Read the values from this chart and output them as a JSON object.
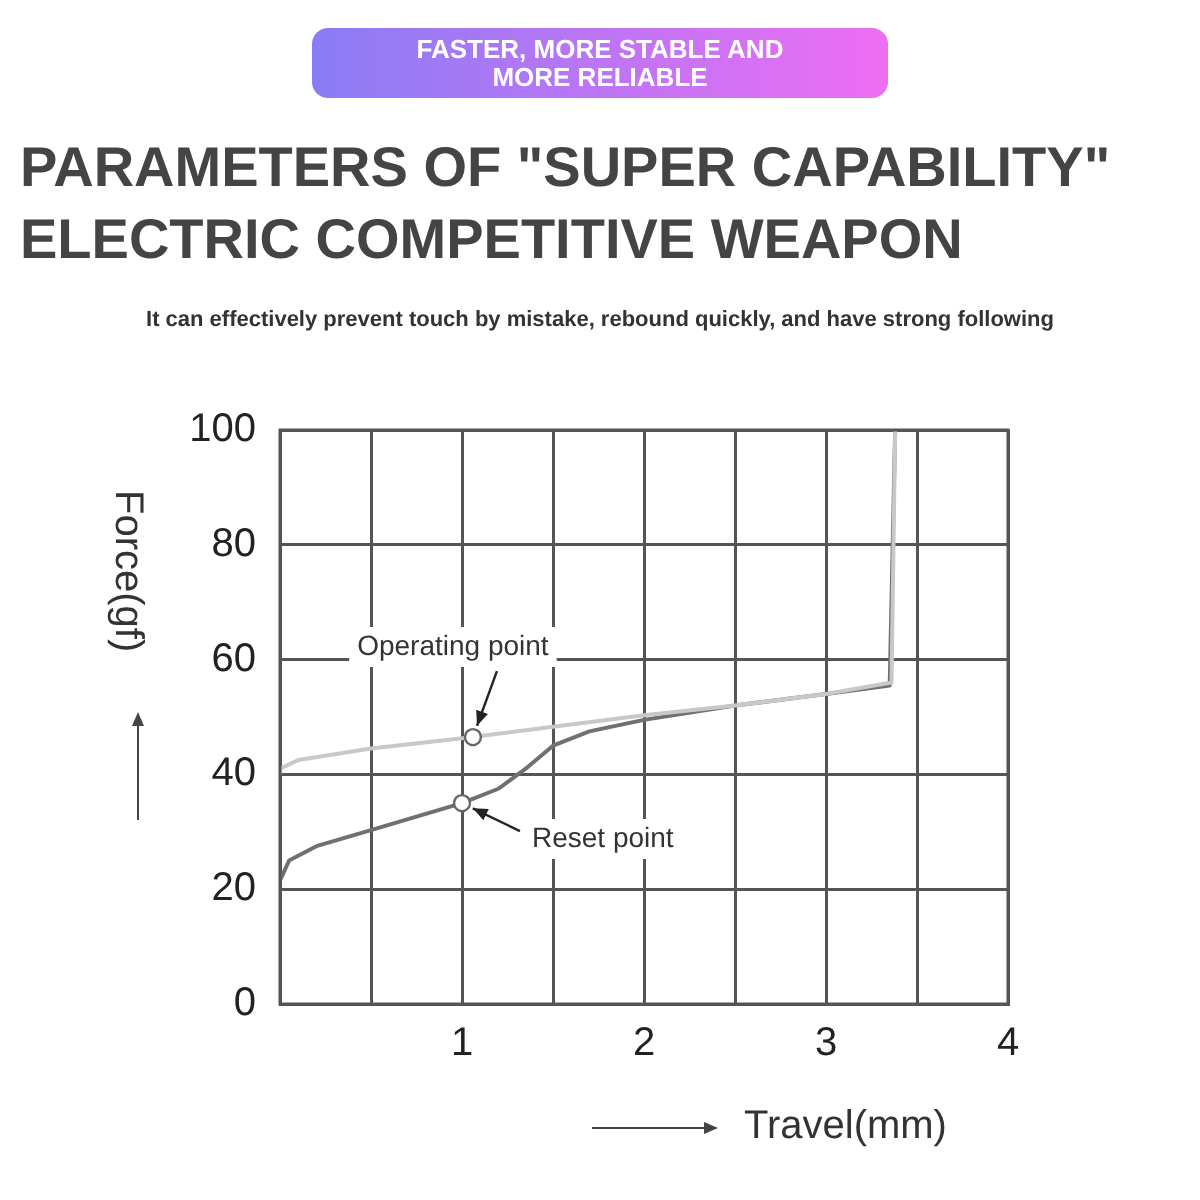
{
  "chart_data": {
    "type": "line",
    "title": "PARAMETERS OF \"SUPER CAPABILITY\" ELECTRIC COMPETITIVE WEAPON",
    "subtitle": "It can effectively prevent touch by mistake, rebound quickly, and have strong following",
    "xlabel": "Travel(mm)",
    "ylabel": "Force(gf)",
    "annotations": [
      "FASTER, MORE STABLE AND MORE RELIABLE",
      {
        "text": "Operating point",
        "x": 1.06,
        "y": 46.5
      },
      {
        "text": "Reset point",
        "x": 1,
        "y": 35
      }
    ],
    "series": [
      {
        "color": "#c8c8c8",
        "x": [
          0,
          0,
          0.1,
          0.5,
          1,
          1.5,
          2,
          2.5,
          3,
          3.36,
          3.38
        ],
        "values": [
          40,
          41,
          42.5,
          44.5,
          46.3,
          48.3,
          50.3,
          52,
          54,
          56,
          100
        ]
      },
      {
        "color": "#707070",
        "x": [
          0,
          0.05,
          0.2,
          0.5,
          1,
          1.2,
          1.35,
          1.5,
          1.7,
          2,
          2.5,
          3,
          3.35,
          3.38
        ],
        "values": [
          21.5,
          25,
          27.5,
          30.3,
          35,
          37.5,
          41,
          45,
          47.5,
          49.5,
          52,
          54,
          55.5,
          100
        ]
      }
    ],
    "xlim": [
      0,
      4
    ],
    "xticks": [
      {
        "value": 0,
        "label": null
      },
      {
        "value": 0.5,
        "label": null
      },
      1,
      {
        "value": 1.5,
        "label": null
      },
      2,
      {
        "value": 2.5,
        "label": null
      },
      3,
      {
        "value": 3.5,
        "label": null
      },
      4
    ],
    "ylim": [
      0,
      100
    ],
    "yticks": [
      0,
      20,
      40,
      60,
      80,
      100
    ],
    "grid": true,
    "legend": false,
    "marker": "none",
    "line_style": "solid"
  }
}
